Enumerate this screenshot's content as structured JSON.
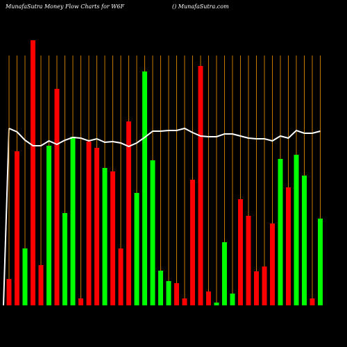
{
  "chart_data": {
    "type": "bar",
    "title": "MunafaSutra  Money Flow  Charts for W6F",
    "subtitle": "() MunafaSutra.com",
    "values": [
      38,
      222,
      82,
      382,
      58,
      230,
      312,
      133,
      243,
      10,
      236,
      227,
      198,
      193,
      82,
      265,
      162,
      337,
      209,
      50,
      35,
      32,
      10,
      181,
      345,
      20,
      4,
      91,
      17,
      153,
      129,
      49,
      56,
      118,
      211,
      170,
      217,
      187,
      10,
      125
    ],
    "bar_colors": [
      "red",
      "red",
      "#00ff00",
      "red",
      "red",
      "#00ff00",
      "red",
      "#00ff00",
      "#00ff00",
      "red",
      "red",
      "red",
      "#00ff00",
      "red",
      "red",
      "red",
      "#00ff00",
      "#00ff00",
      "#00ff00",
      "#00ff00",
      "#00ff00",
      "red",
      "red",
      "red",
      "red",
      "red",
      "#00ff00",
      "#00ff00",
      "#00ff00",
      "red",
      "red",
      "red",
      "red",
      "red",
      "#00ff00",
      "red",
      "#00ff00",
      "#00ff00",
      "red",
      "#00ff00"
    ],
    "line_values": [
      255,
      250,
      238,
      230,
      230,
      237,
      232,
      238,
      242,
      241,
      237,
      240,
      235,
      236,
      234,
      229,
      234,
      242,
      251,
      251,
      252,
      252,
      255,
      249,
      244,
      243,
      243,
      247,
      247,
      244,
      241,
      240,
      240,
      237,
      244,
      241,
      252,
      248,
      248,
      251
    ],
    "line_color": "#ffffff",
    "grid_color": "#c87800",
    "ylim": [
      0,
      400
    ]
  }
}
